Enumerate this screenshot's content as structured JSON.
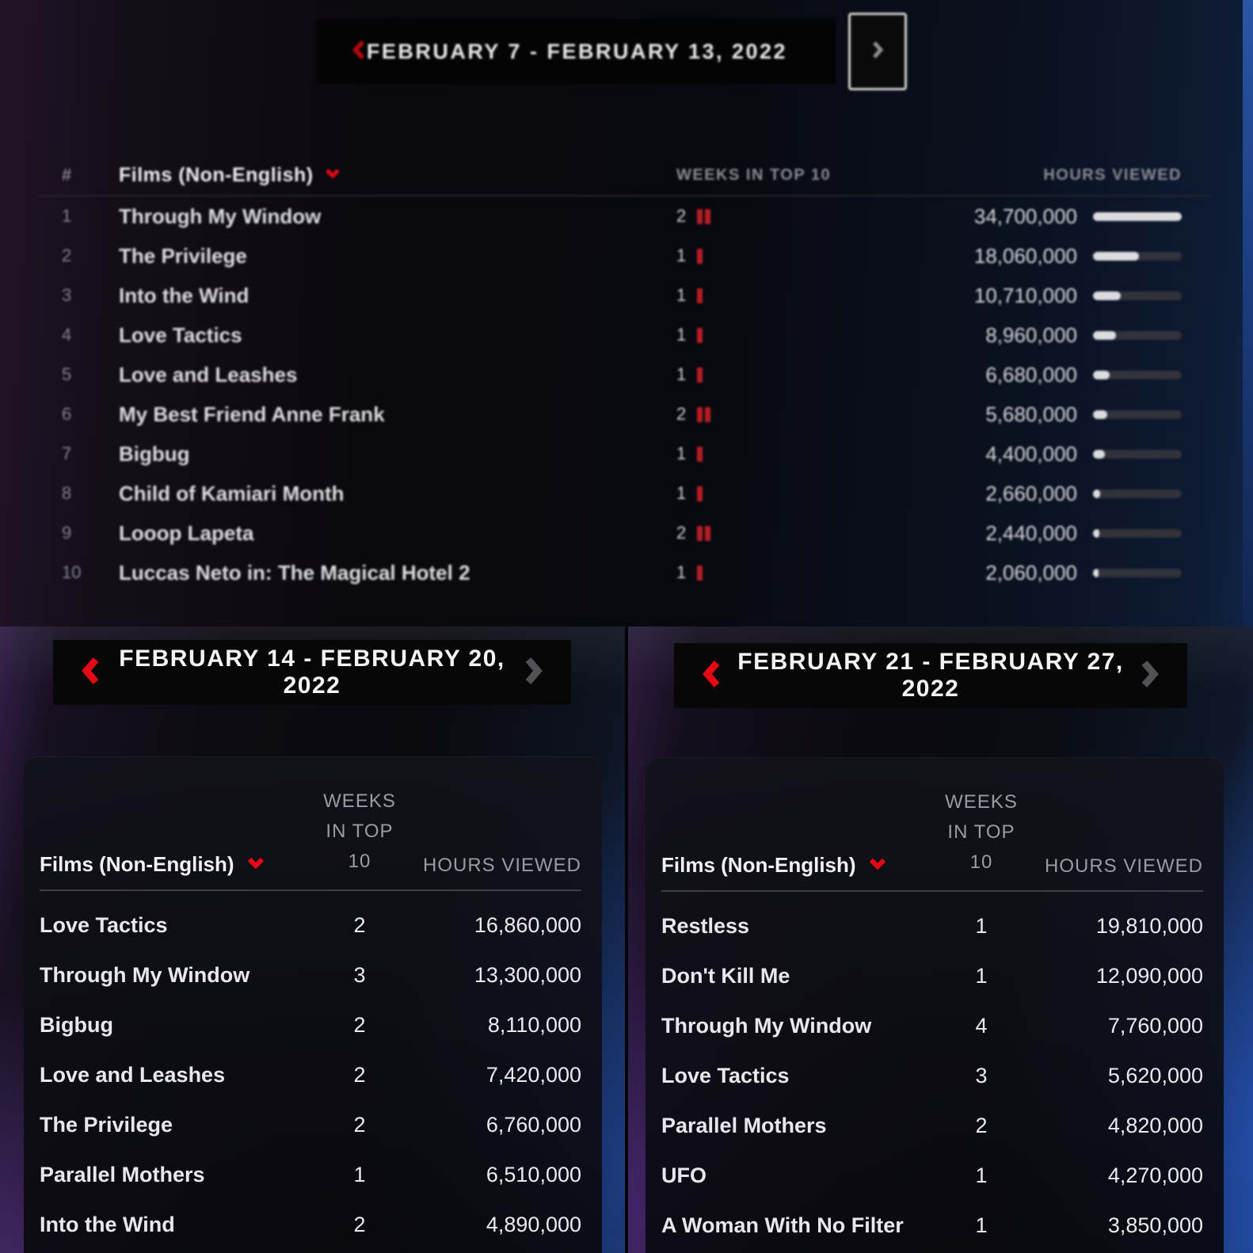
{
  "colors": {
    "accent_red": "#e50914",
    "weeks_bar_red": "#b81d25",
    "hours_bar_track": "#31323a",
    "hours_bar_fill": "#dcdcdf",
    "disabled_chevron": "#55555b",
    "header_gray": "#9b9ba4"
  },
  "icons": {
    "prev": "chevron-left-icon",
    "next": "chevron-right-icon",
    "sort": "chevron-down-icon"
  },
  "top": {
    "nav": {
      "label": "FEBRUARY 7 - FEBRUARY 13, 2022"
    },
    "headers": {
      "rank": "#",
      "films": "Films (Non-English)",
      "weeks": "WEEKS IN TOP 10",
      "hours": "HOURS VIEWED"
    },
    "rows": [
      {
        "rank": "1",
        "title": "Through My Window",
        "weeks": "2",
        "hours": "34,700,000"
      },
      {
        "rank": "2",
        "title": "The Privilege",
        "weeks": "1",
        "hours": "18,060,000"
      },
      {
        "rank": "3",
        "title": "Into the Wind",
        "weeks": "1",
        "hours": "10,710,000"
      },
      {
        "rank": "4",
        "title": "Love Tactics",
        "weeks": "1",
        "hours": "8,960,000"
      },
      {
        "rank": "5",
        "title": "Love and Leashes",
        "weeks": "1",
        "hours": "6,680,000"
      },
      {
        "rank": "6",
        "title": "My Best Friend Anne Frank",
        "weeks": "2",
        "hours": "5,680,000"
      },
      {
        "rank": "7",
        "title": "Bigbug",
        "weeks": "1",
        "hours": "4,400,000"
      },
      {
        "rank": "8",
        "title": "Child of Kamiari Month",
        "weeks": "1",
        "hours": "2,660,000"
      },
      {
        "rank": "9",
        "title": "Looop Lapeta",
        "weeks": "2",
        "hours": "2,440,000"
      },
      {
        "rank": "10",
        "title": "Luccas Neto in: The Magical Hotel 2",
        "weeks": "1",
        "hours": "2,060,000"
      }
    ]
  },
  "left": {
    "nav": {
      "label": "FEBRUARY 14 - FEBRUARY 20, 2022"
    },
    "headers": {
      "films": "Films (Non-English)",
      "weeks": "WEEKS\nIN TOP\n10",
      "hours": "HOURS VIEWED"
    },
    "rows": [
      {
        "title": "Love Tactics",
        "weeks": "2",
        "hours": "16,860,000"
      },
      {
        "title": "Through My Window",
        "weeks": "3",
        "hours": "13,300,000"
      },
      {
        "title": "Bigbug",
        "weeks": "2",
        "hours": "8,110,000"
      },
      {
        "title": "Love and Leashes",
        "weeks": "2",
        "hours": "7,420,000"
      },
      {
        "title": "The Privilege",
        "weeks": "2",
        "hours": "6,760,000"
      },
      {
        "title": "Parallel Mothers",
        "weeks": "1",
        "hours": "6,510,000"
      },
      {
        "title": "Into the Wind",
        "weeks": "2",
        "hours": "4,890,000"
      }
    ]
  },
  "right": {
    "nav": {
      "label": "FEBRUARY 21 - FEBRUARY 27, 2022"
    },
    "headers": {
      "films": "Films (Non-English)",
      "weeks": "WEEKS\nIN TOP\n10",
      "hours": "HOURS VIEWED"
    },
    "rows": [
      {
        "title": "Restless",
        "weeks": "1",
        "hours": "19,810,000"
      },
      {
        "title": "Don't Kill Me",
        "weeks": "1",
        "hours": "12,090,000"
      },
      {
        "title": "Through My Window",
        "weeks": "4",
        "hours": "7,760,000"
      },
      {
        "title": "Love Tactics",
        "weeks": "3",
        "hours": "5,620,000"
      },
      {
        "title": "Parallel Mothers",
        "weeks": "2",
        "hours": "4,820,000"
      },
      {
        "title": "UFO",
        "weeks": "1",
        "hours": "4,270,000"
      },
      {
        "title": "A Woman With No Filter",
        "weeks": "1",
        "hours": "3,850,000"
      }
    ]
  }
}
